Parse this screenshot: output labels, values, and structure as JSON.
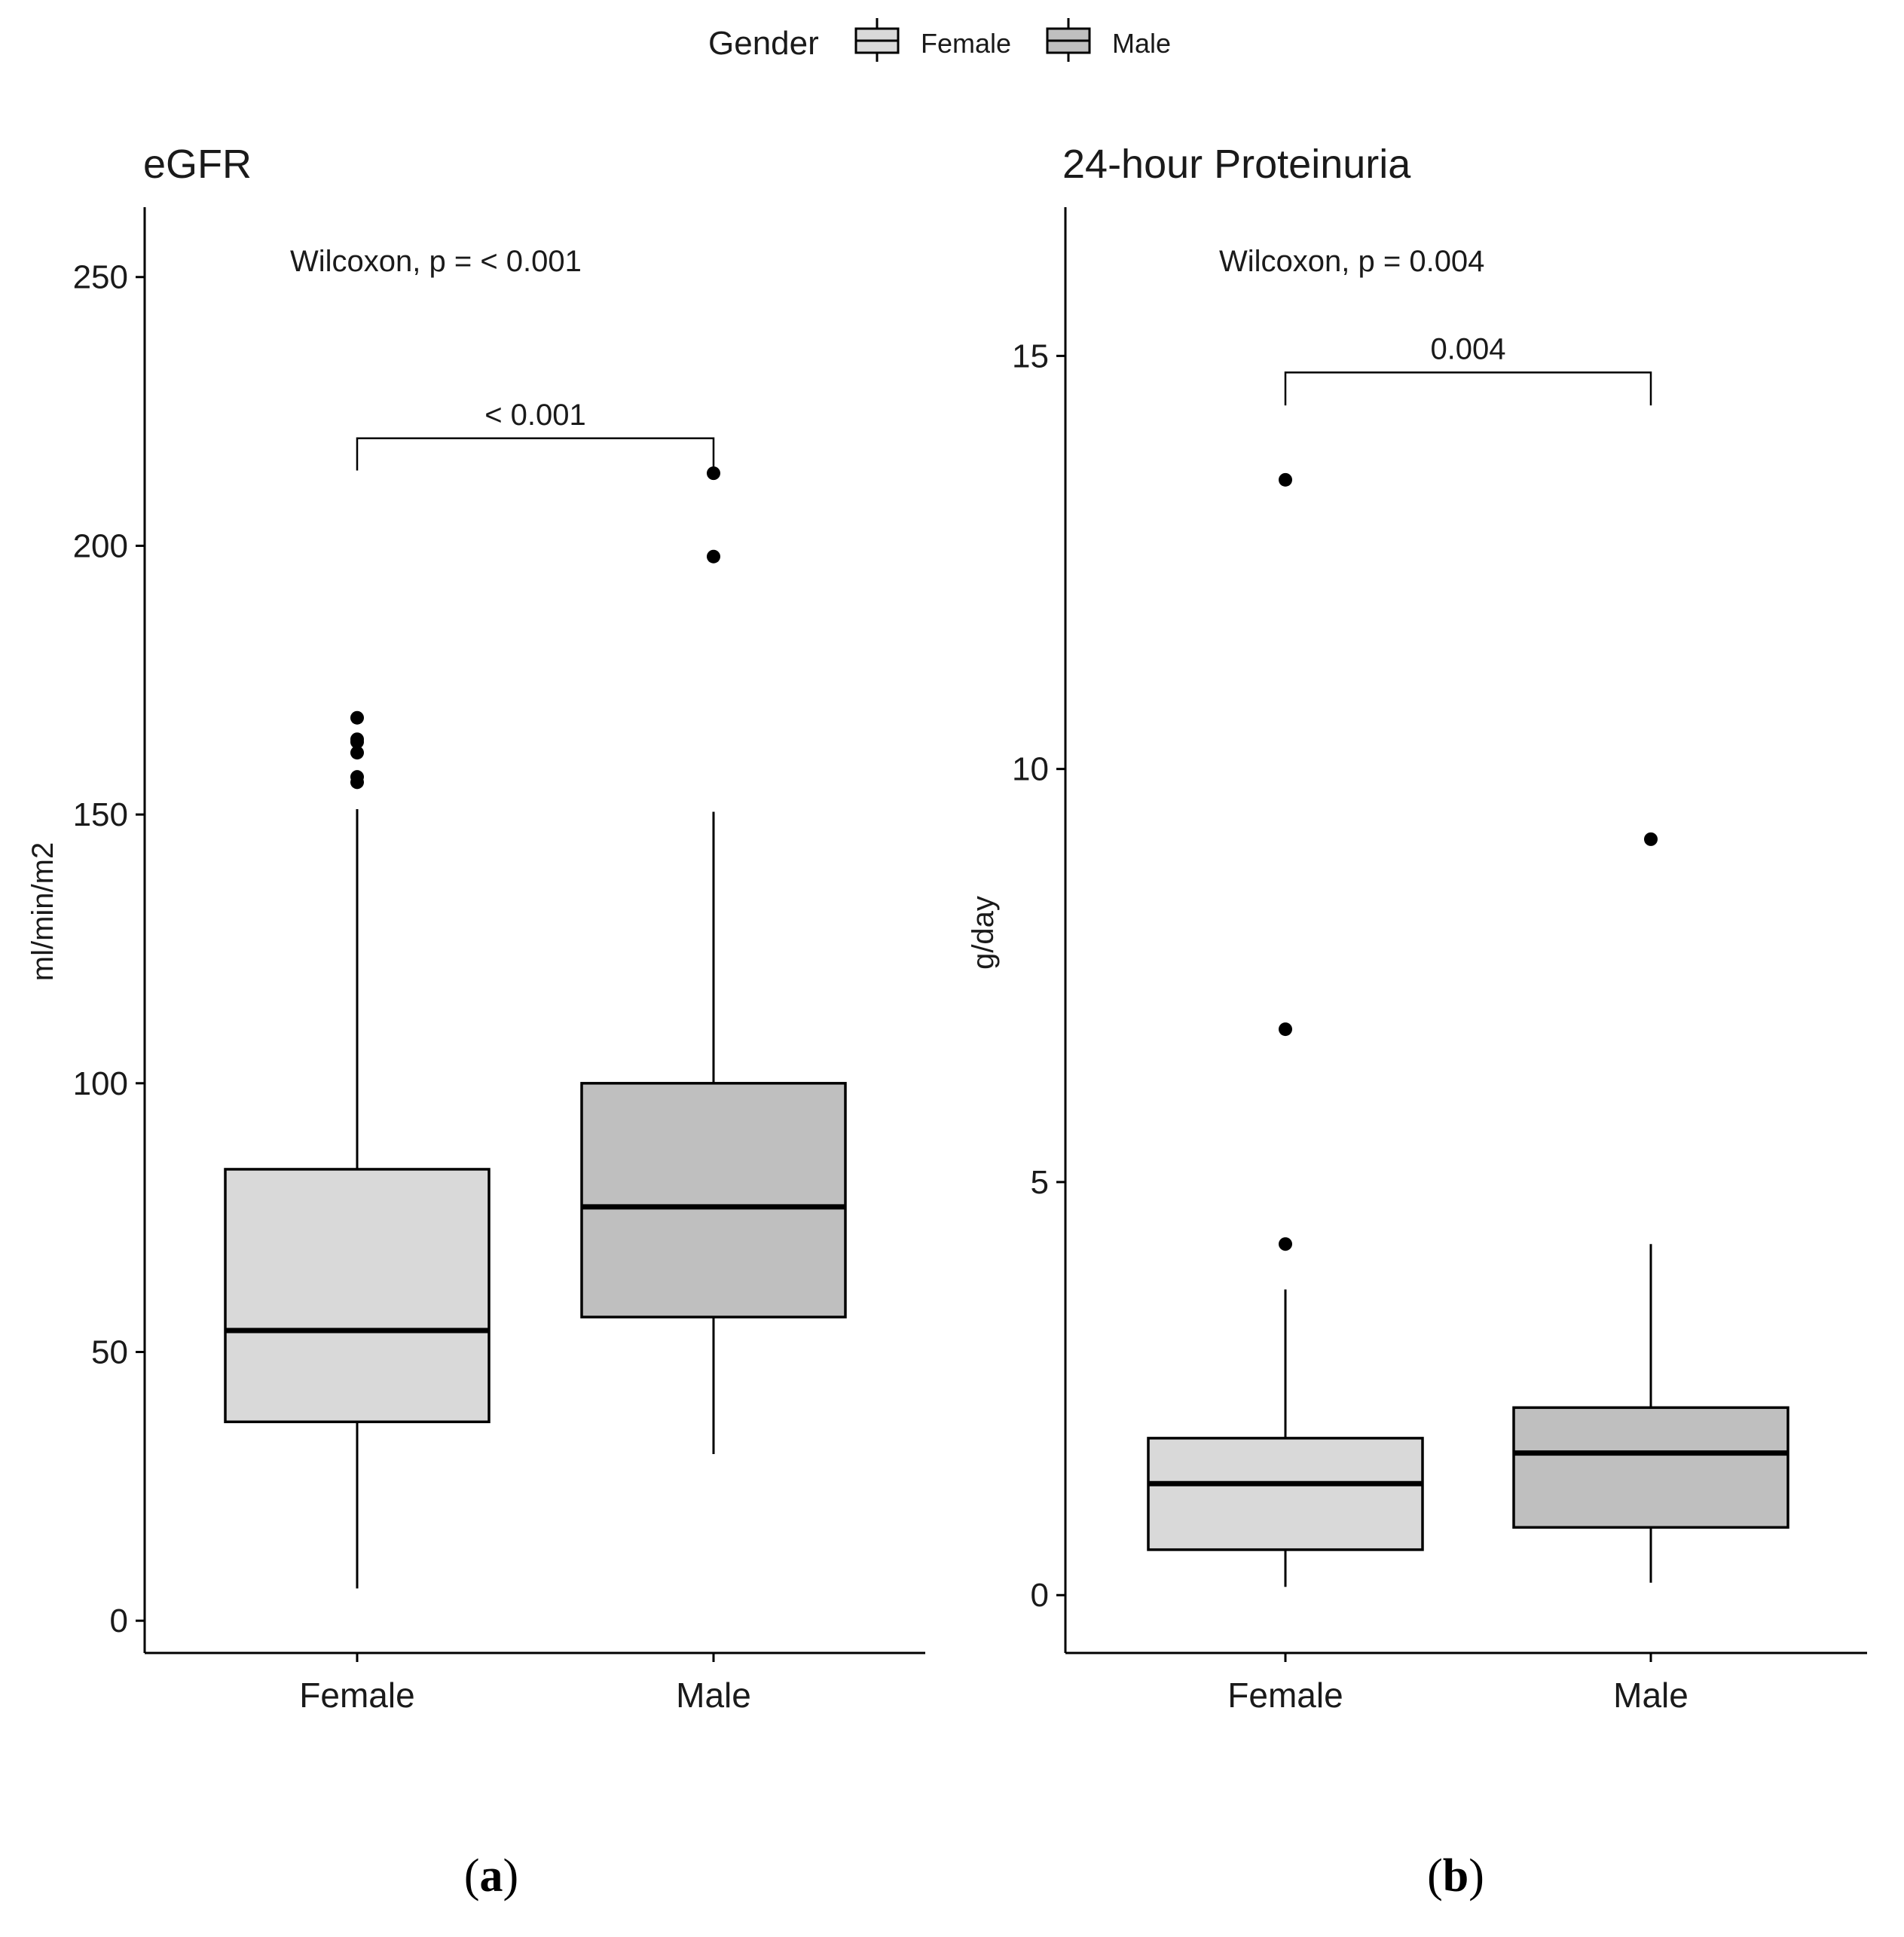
{
  "legend": {
    "title": "Gender",
    "items": [
      {
        "label": "Female",
        "color": "#d9d9d9"
      },
      {
        "label": "Male",
        "color": "#bfbfbf"
      }
    ]
  },
  "chart_data": [
    {
      "type": "box",
      "title": "eGFR",
      "ylabel": "ml/min/m2",
      "xlabel": "",
      "ylim": [
        -6,
        263
      ],
      "yticks": [
        0,
        50,
        100,
        150,
        200,
        250
      ],
      "ytick_labels": [
        "0",
        "50",
        "100",
        "150",
        "200",
        "250"
      ],
      "categories": [
        "Female",
        "Male"
      ],
      "test_label": "Wilcoxon, p = ",
      "test_p": "< 0.001",
      "bracket_label": "< 0.001",
      "bracket_y": 220,
      "bracket_drop": 6,
      "boxes": [
        {
          "name": "Female",
          "color": "#d9d9d9",
          "whisker_low": 6,
          "q1": 37,
          "median": 54,
          "q3": 84,
          "whisker_high": 151,
          "outliers": [
            156,
            157,
            161.5,
            163.5,
            164,
            168
          ]
        },
        {
          "name": "Male",
          "color": "#bfbfbf",
          "whisker_low": 31,
          "q1": 56.5,
          "median": 77,
          "q3": 100,
          "whisker_high": 150.5,
          "outliers": [
            198,
            213.5
          ]
        }
      ]
    },
    {
      "type": "box",
      "title": "24-hour Proteinuria",
      "ylabel": "g/day",
      "xlabel": "",
      "ylim": [
        -0.7,
        16.8
      ],
      "yticks": [
        0,
        5,
        10,
        15
      ],
      "ytick_labels": [
        "0",
        "5",
        "10",
        "15"
      ],
      "categories": [
        "Female",
        "Male"
      ],
      "test_label": "Wilcoxon, p = ",
      "test_p": "0.004",
      "bracket_label": "0.004",
      "bracket_y": 14.8,
      "bracket_drop": 0.4,
      "boxes": [
        {
          "name": "Female",
          "color": "#d9d9d9",
          "whisker_low": 0.1,
          "q1": 0.55,
          "median": 1.35,
          "q3": 1.9,
          "whisker_high": 3.7,
          "outliers": [
            4.25,
            6.85,
            13.5
          ]
        },
        {
          "name": "Male",
          "color": "#bfbfbf",
          "whisker_low": 0.15,
          "q1": 0.82,
          "median": 1.72,
          "q3": 2.27,
          "whisker_high": 4.25,
          "outliers": [
            9.15
          ]
        }
      ]
    }
  ],
  "panel_labels": [
    {
      "open": "(",
      "letter": "a",
      "close": ")"
    },
    {
      "open": "(",
      "letter": "b",
      "close": ")"
    }
  ]
}
